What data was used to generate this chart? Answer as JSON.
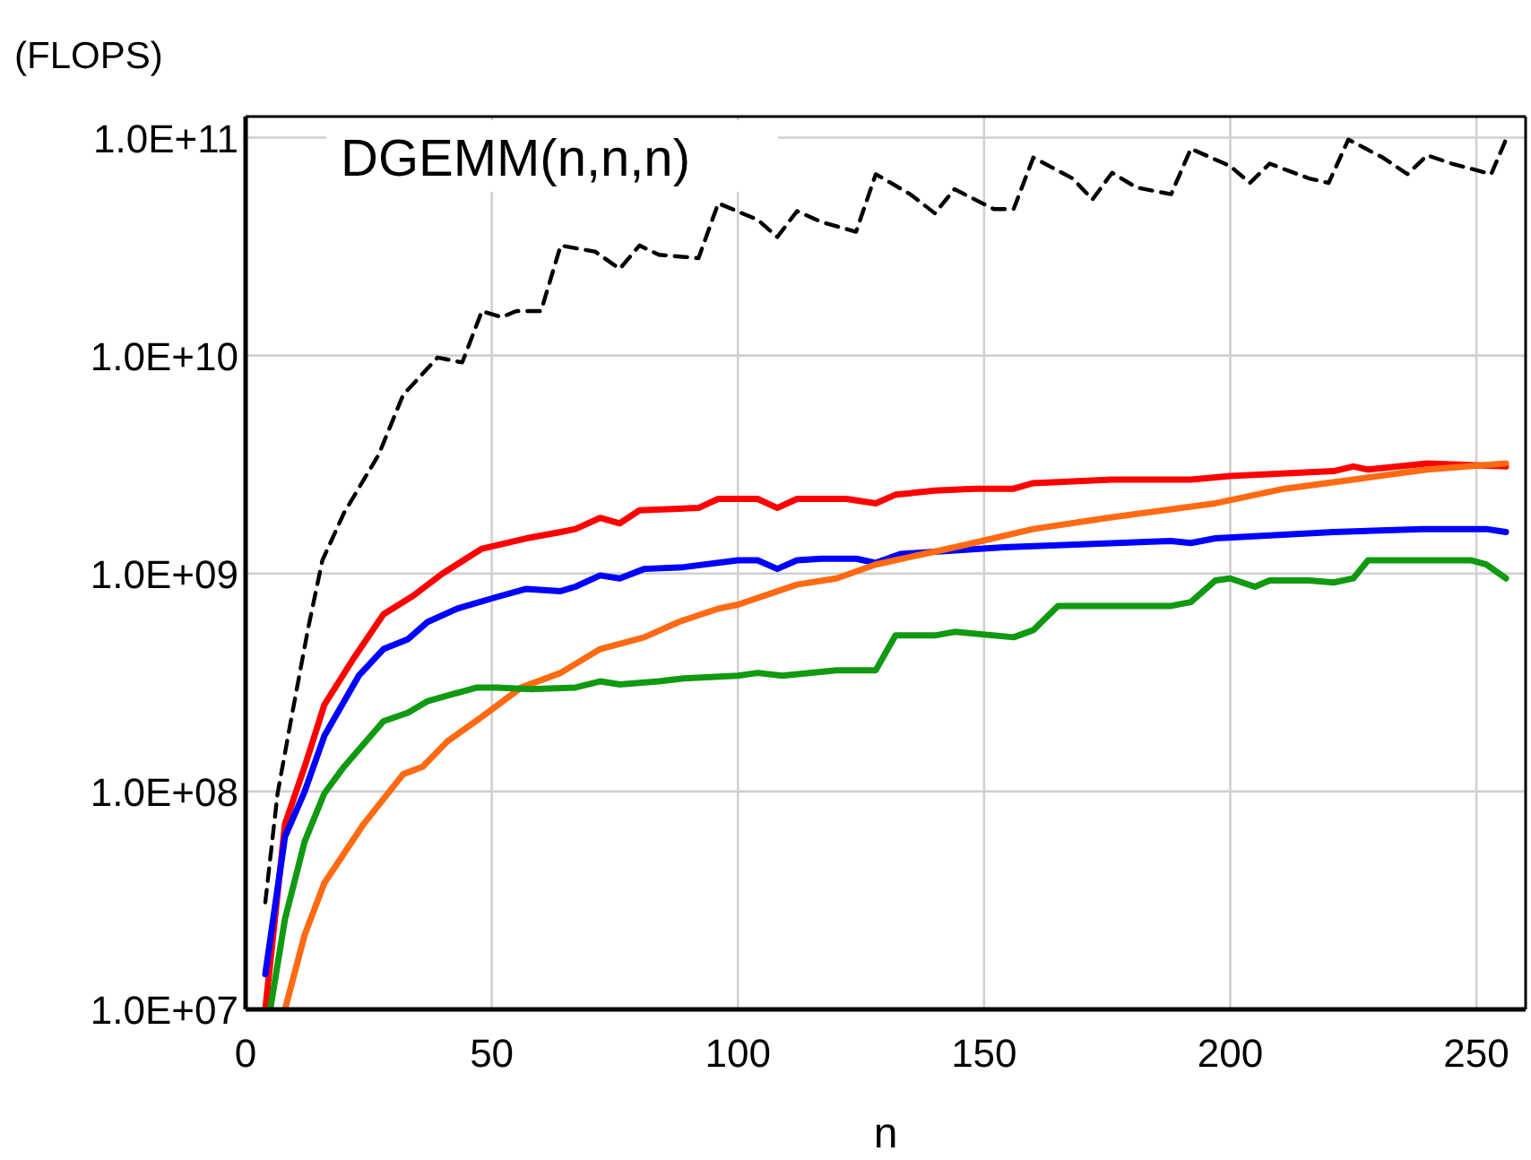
{
  "chart_data": {
    "type": "line",
    "xlabel": "n",
    "ylabel": "(FLOPS)",
    "annotations": [
      "DGEMM(n,n,n)"
    ],
    "log": "y",
    "grid": true,
    "marker": "none",
    "xlim": [
      0,
      260
    ],
    "xticks": [
      0,
      50,
      100,
      150,
      200,
      250
    ],
    "ylim": [
      10000000.0,
      125000000000.0
    ],
    "yticks": [
      {
        "value": 10000000.0,
        "label": "1.0E+07"
      },
      {
        "value": 100000000.0,
        "label": "1.0E+08"
      },
      {
        "value": 1000000000.0,
        "label": "1.0E+09"
      },
      {
        "value": 10000000000.0,
        "label": "1.0E+10"
      },
      {
        "value": 100000000000.0,
        "label": "1.0E+11"
      }
    ],
    "series": [
      {
        "color": "#000000",
        "line_style": "dashed",
        "x": [
          4,
          6.5,
          9.5,
          12.7,
          15.6,
          20,
          27,
          32,
          39,
          44,
          48,
          52,
          55,
          60,
          64,
          71,
          76,
          80,
          84,
          92,
          96,
          104,
          108,
          112,
          117,
          124,
          128,
          135,
          140,
          144,
          152,
          156,
          160,
          168,
          172,
          176,
          181,
          188,
          192,
          200,
          204,
          208,
          216,
          220,
          224,
          231,
          236,
          240,
          245,
          253,
          256
        ],
        "values": [
          31000000.0,
          98000000.0,
          230000000.0,
          560000000.0,
          1150000000.0,
          1900000000.0,
          3500000000.0,
          6600000000.0,
          9800000000.0,
          9300000000.0,
          16000000000.0,
          15000000000.0,
          16000000000.0,
          16000000000.0,
          32000000000.0,
          30000000000.0,
          25000000000.0,
          32000000000.0,
          29000000000.0,
          28000000000.0,
          50000000000.0,
          42000000000.0,
          35000000000.0,
          46000000000.0,
          41000000000.0,
          37000000000.0,
          68000000000.0,
          55000000000.0,
          45000000000.0,
          58000000000.0,
          47000000000.0,
          47000000000.0,
          81000000000.0,
          65000000000.0,
          52000000000.0,
          69000000000.0,
          59000000000.0,
          55000000000.0,
          89000000000.0,
          74000000000.0,
          62000000000.0,
          76000000000.0,
          65000000000.0,
          62000000000.0,
          98000000000.0,
          81000000000.0,
          68000000000.0,
          83000000000.0,
          76000000000.0,
          68000000000.0,
          98000000000.0
        ]
      },
      {
        "color": "#ff0000",
        "line_style": "solid",
        "x": [
          4,
          8,
          12,
          16,
          22,
          28,
          34,
          40,
          48,
          57,
          64,
          67,
          72,
          76,
          80,
          92,
          96,
          104,
          108,
          112,
          122,
          128,
          132,
          140,
          148,
          156,
          160,
          176,
          192,
          200,
          221,
          225,
          228,
          240,
          256
        ],
        "values": [
          10000000.0,
          71000000.0,
          130000000.0,
          250000000.0,
          410000000.0,
          650000000.0,
          790000000.0,
          1000000000.0,
          1300000000.0,
          1450000000.0,
          1550000000.0,
          1600000000.0,
          1800000000.0,
          1700000000.0,
          1950000000.0,
          2000000000.0,
          2200000000.0,
          2200000000.0,
          2000000000.0,
          2200000000.0,
          2200000000.0,
          2100000000.0,
          2300000000.0,
          2400000000.0,
          2450000000.0,
          2450000000.0,
          2600000000.0,
          2700000000.0,
          2700000000.0,
          2800000000.0,
          2950000000.0,
          3100000000.0,
          3000000000.0,
          3200000000.0,
          3100000000.0
        ]
      },
      {
        "color": "#0000ff",
        "line_style": "solid",
        "x": [
          4,
          8,
          12,
          16,
          23,
          28,
          33,
          37,
          43,
          51,
          57,
          64,
          67,
          72,
          76,
          81,
          89,
          100,
          104,
          108,
          112,
          117,
          124,
          128,
          133,
          154,
          188,
          192,
          197,
          221,
          239,
          252,
          256
        ],
        "values": [
          14500000.0,
          62000000.0,
          100000000.0,
          180000000.0,
          340000000.0,
          450000000.0,
          500000000.0,
          600000000.0,
          690000000.0,
          780000000.0,
          850000000.0,
          830000000.0,
          870000000.0,
          980000000.0,
          950000000.0,
          1050000000.0,
          1070000000.0,
          1150000000.0,
          1150000000.0,
          1050000000.0,
          1150000000.0,
          1170000000.0,
          1170000000.0,
          1120000000.0,
          1230000000.0,
          1320000000.0,
          1410000000.0,
          1380000000.0,
          1450000000.0,
          1550000000.0,
          1600000000.0,
          1600000000.0,
          1550000000.0
        ]
      },
      {
        "color": "#ff6a13",
        "line_style": "solid",
        "x": [
          8,
          12,
          16,
          24,
          32,
          36,
          41,
          48,
          56,
          64,
          72,
          81,
          88,
          96,
          100,
          112,
          120,
          128,
          144,
          160,
          175,
          197,
          211,
          225,
          240,
          256
        ],
        "values": [
          10000000.0,
          22000000.0,
          38000000.0,
          71000000.0,
          120000000.0,
          130000000.0,
          170000000.0,
          220000000.0,
          300000000.0,
          350000000.0,
          450000000.0,
          510000000.0,
          600000000.0,
          690000000.0,
          720000000.0,
          890000000.0,
          950000000.0,
          1100000000.0,
          1320000000.0,
          1600000000.0,
          1800000000.0,
          2100000000.0,
          2450000000.0,
          2700000000.0,
          3000000000.0,
          3200000000.0
        ]
      },
      {
        "color": "#119911",
        "line_style": "solid",
        "x": [
          5,
          8,
          12,
          16,
          20,
          28,
          33,
          37,
          47,
          51,
          58,
          67,
          72,
          76,
          84,
          89,
          100,
          104,
          109,
          120,
          128,
          132,
          140,
          144,
          156,
          160,
          165,
          172,
          188,
          192,
          197,
          200,
          205,
          208,
          216,
          221,
          225,
          228,
          233,
          249,
          252,
          256
        ],
        "values": [
          10000000.0,
          26000000.0,
          59000000.0,
          98000000.0,
          130000000.0,
          210000000.0,
          230000000.0,
          260000000.0,
          300000000.0,
          300000000.0,
          295000000.0,
          300000000.0,
          320000000.0,
          310000000.0,
          320000000.0,
          330000000.0,
          340000000.0,
          350000000.0,
          340000000.0,
          360000000.0,
          360000000.0,
          520000000.0,
          520000000.0,
          540000000.0,
          510000000.0,
          550000000.0,
          710000000.0,
          710000000.0,
          710000000.0,
          740000000.0,
          930000000.0,
          950000000.0,
          870000000.0,
          930000000.0,
          930000000.0,
          910000000.0,
          950000000.0,
          1150000000.0,
          1150000000.0,
          1150000000.0,
          1100000000.0,
          950000000.0
        ]
      }
    ]
  }
}
